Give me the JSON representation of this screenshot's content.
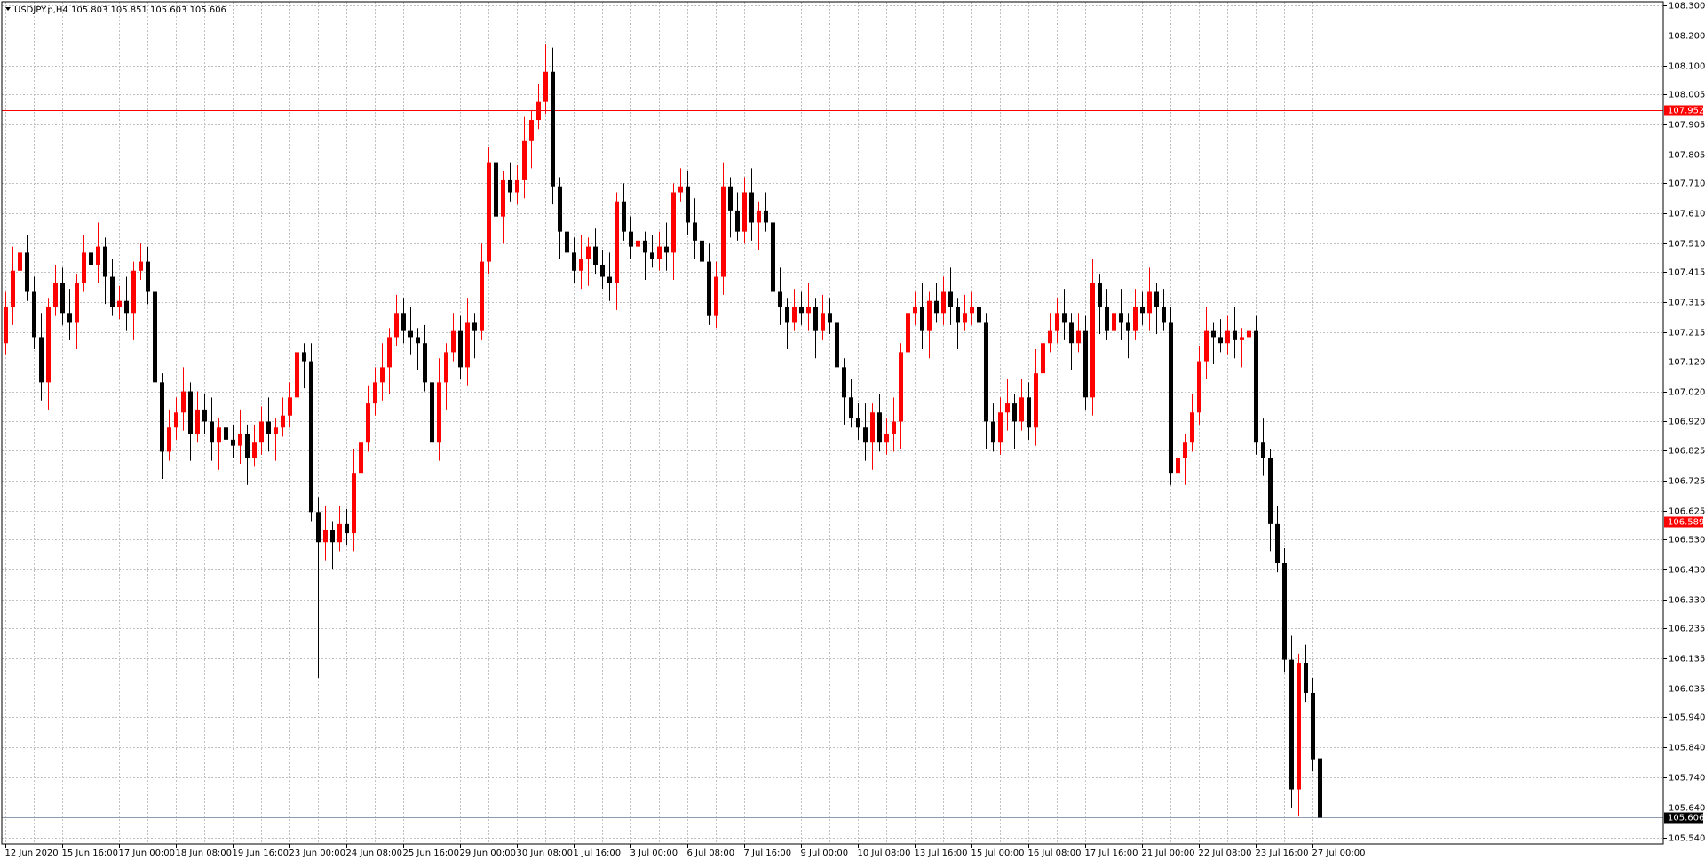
{
  "chart_data": {
    "type": "candlestick",
    "title": "USDJPY.p,H4  105.803 105.851 105.603 105.606",
    "categories": [
      "12 Jun 2020",
      null,
      null,
      null,
      null,
      null,
      null,
      null,
      "15 Jun 16:00",
      null,
      null,
      null,
      null,
      null,
      null,
      null,
      "17 Jun 00:00",
      null,
      null,
      null,
      null,
      null,
      null,
      null,
      "18 Jun 08:00",
      null,
      null,
      null,
      null,
      null,
      null,
      null,
      "19 Jun 16:00",
      null,
      null,
      null,
      null,
      null,
      null,
      null,
      "23 Jun 00:00",
      null,
      null,
      null,
      null,
      null,
      null,
      null,
      "24 Jun 08:00",
      null,
      null,
      null,
      null,
      null,
      null,
      null,
      "25 Jun 16:00",
      null,
      null,
      null,
      null,
      null,
      null,
      null,
      "29 Jun 00:00",
      null,
      null,
      null,
      null,
      null,
      null,
      null,
      "30 Jun 08:00",
      null,
      null,
      null,
      null,
      null,
      null,
      null,
      "1 Jul 16:00",
      null,
      null,
      null,
      null,
      null,
      null,
      null,
      "3 Jul 00:00",
      null,
      null,
      null,
      null,
      null,
      null,
      null,
      "6 Jul 08:00",
      null,
      null,
      null,
      null,
      null,
      null,
      null,
      "7 Jul 16:00",
      null,
      null,
      null,
      null,
      null,
      null,
      null,
      "9 Jul 00:00",
      null,
      null,
      null,
      null,
      null,
      null,
      null,
      "10 Jul 08:00",
      null,
      null,
      null,
      null,
      null,
      null,
      null,
      "13 Jul 16:00",
      null,
      null,
      null,
      null,
      null,
      null,
      null,
      "15 Jul 00:00",
      null,
      null,
      null,
      null,
      null,
      null,
      null,
      "16 Jul 08:00",
      null,
      null,
      null,
      null,
      null,
      null,
      null,
      "17 Jul 16:00",
      null,
      null,
      null,
      null,
      null,
      null,
      null,
      "21 Jul 00:00",
      null,
      null,
      null,
      null,
      null,
      null,
      null,
      "22 Jul 08:00",
      null,
      null,
      null,
      null,
      null,
      null,
      null,
      "23 Jul 16:00",
      null,
      null,
      null,
      null,
      null,
      null,
      null,
      "27 Jul 00:00",
      null
    ],
    "open": [
      107.18,
      107.3,
      107.42,
      107.48,
      107.35,
      107.2,
      107.05,
      107.3,
      107.38,
      107.28,
      107.25,
      107.38,
      107.48,
      107.44,
      107.5,
      107.4,
      107.3,
      107.32,
      107.28,
      107.42,
      107.45,
      107.35,
      107.05,
      106.82,
      106.9,
      106.95,
      107.02,
      106.88,
      106.96,
      106.92,
      106.85,
      106.9,
      106.86,
      106.84,
      106.88,
      106.8,
      106.85,
      106.92,
      106.88,
      106.9,
      106.94,
      107.0,
      107.15,
      107.12,
      106.62,
      106.52,
      106.56,
      106.52,
      106.58,
      106.55,
      106.75,
      106.85,
      106.98,
      107.05,
      107.1,
      107.2,
      107.28,
      107.22,
      107.2,
      107.18,
      107.05,
      106.85,
      107.05,
      107.15,
      107.22,
      107.1,
      107.25,
      107.22,
      107.45,
      107.78,
      107.6,
      107.72,
      107.68,
      107.72,
      107.85,
      107.92,
      107.98,
      108.08,
      107.7,
      107.55,
      107.48,
      107.42,
      107.46,
      107.5,
      107.44,
      107.4,
      107.38,
      107.65,
      107.55,
      107.5,
      107.52,
      107.48,
      107.46,
      107.5,
      107.48,
      107.68,
      107.7,
      107.58,
      107.52,
      107.45,
      107.27,
      107.4,
      107.7,
      107.62,
      107.55,
      107.68,
      107.58,
      107.62,
      107.58,
      107.35,
      107.3,
      107.25,
      107.3,
      107.28,
      107.3,
      107.22,
      107.28,
      107.25,
      107.1,
      107.0,
      106.93,
      106.9,
      106.85,
      106.95,
      106.85,
      106.88,
      106.92,
      107.15,
      107.28,
      107.3,
      107.22,
      107.32,
      107.28,
      107.35,
      107.3,
      107.25,
      107.28,
      107.3,
      107.25,
      106.92,
      106.85,
      106.95,
      106.98,
      106.92,
      107.0,
      106.9,
      107.08,
      107.18,
      107.22,
      107.28,
      107.25,
      107.18,
      107.22,
      107.0,
      107.38,
      107.3,
      107.22,
      107.28,
      107.25,
      107.22,
      107.3,
      107.28,
      107.35,
      107.3,
      107.25,
      106.75,
      106.8,
      106.85,
      106.95,
      107.12,
      107.22,
      107.2,
      107.18,
      107.22,
      107.19,
      107.2,
      107.22,
      106.85,
      106.8,
      106.58,
      106.45,
      106.13,
      105.7,
      106.12,
      106.02,
      105.803
    ],
    "high": [
      107.35,
      107.5,
      107.51,
      107.54,
      107.4,
      107.28,
      107.33,
      107.44,
      107.43,
      107.36,
      107.41,
      107.54,
      107.53,
      107.58,
      107.53,
      107.46,
      107.37,
      107.4,
      107.45,
      107.51,
      107.5,
      107.43,
      107.08,
      106.96,
      107.0,
      107.1,
      107.05,
      107.02,
      107.01,
      107.0,
      106.93,
      106.96,
      106.91,
      106.96,
      106.91,
      106.91,
      106.97,
      107.0,
      106.93,
      107.0,
      107.05,
      107.23,
      107.18,
      107.18,
      106.67,
      106.64,
      106.59,
      106.64,
      106.63,
      106.83,
      106.88,
      107.04,
      107.1,
      107.18,
      107.23,
      107.34,
      107.33,
      107.3,
      107.23,
      107.24,
      107.1,
      107.13,
      107.18,
      107.28,
      107.27,
      107.33,
      107.28,
      107.51,
      107.83,
      107.86,
      107.75,
      107.78,
      107.77,
      107.93,
      107.95,
      108.04,
      108.17,
      108.16,
      107.73,
      107.61,
      107.53,
      107.54,
      107.53,
      107.56,
      107.49,
      107.48,
      107.68,
      107.71,
      107.6,
      107.6,
      107.55,
      107.54,
      107.55,
      107.58,
      107.71,
      107.76,
      107.75,
      107.66,
      107.55,
      107.51,
      107.45,
      107.78,
      107.73,
      107.68,
      107.73,
      107.76,
      107.65,
      107.68,
      107.63,
      107.43,
      107.33,
      107.36,
      107.35,
      107.38,
      107.33,
      107.34,
      107.33,
      107.33,
      107.13,
      107.06,
      106.98,
      106.98,
      106.98,
      107.01,
      106.93,
      107.0,
      107.18,
      107.34,
      107.35,
      107.38,
      107.35,
      107.38,
      107.4,
      107.43,
      107.33,
      107.34,
      107.35,
      107.38,
      107.28,
      106.98,
      107.0,
      107.06,
      107.01,
      107.06,
      107.05,
      107.16,
      107.21,
      107.28,
      107.33,
      107.36,
      107.28,
      107.28,
      107.27,
      107.46,
      107.41,
      107.36,
      107.33,
      107.36,
      107.28,
      107.36,
      107.35,
      107.43,
      107.38,
      107.36,
      107.3,
      106.88,
      106.88,
      107.01,
      107.17,
      107.3,
      107.25,
      107.26,
      107.27,
      107.3,
      107.23,
      107.28,
      107.27,
      106.93,
      106.83,
      106.64,
      106.5,
      106.21,
      106.15,
      106.18,
      106.07,
      105.851
    ],
    "low": [
      107.14,
      107.24,
      107.33,
      107.32,
      107.16,
      106.99,
      106.96,
      107.27,
      107.24,
      107.19,
      107.16,
      107.35,
      107.4,
      107.38,
      107.31,
      107.27,
      107.26,
      107.22,
      107.19,
      107.39,
      107.31,
      106.99,
      106.73,
      106.79,
      106.86,
      106.89,
      106.79,
      106.85,
      106.88,
      106.79,
      106.76,
      106.83,
      106.8,
      106.78,
      106.71,
      106.77,
      106.81,
      106.82,
      106.79,
      106.87,
      106.9,
      106.94,
      107.03,
      106.59,
      106.07,
      106.46,
      106.43,
      106.49,
      106.51,
      106.49,
      106.66,
      106.82,
      106.94,
      106.99,
      107.01,
      107.17,
      107.18,
      107.14,
      107.09,
      107.02,
      106.81,
      106.79,
      106.96,
      107.12,
      107.06,
      107.04,
      107.13,
      107.19,
      107.41,
      107.54,
      107.51,
      107.65,
      107.64,
      107.66,
      107.76,
      107.89,
      107.94,
      107.64,
      107.46,
      107.45,
      107.38,
      107.36,
      107.37,
      107.41,
      107.36,
      107.32,
      107.29,
      107.52,
      107.46,
      107.44,
      107.39,
      107.43,
      107.42,
      107.42,
      107.39,
      107.65,
      107.54,
      107.46,
      107.36,
      107.24,
      107.23,
      107.34,
      107.53,
      107.52,
      107.51,
      107.52,
      107.49,
      107.55,
      107.31,
      107.24,
      107.16,
      107.22,
      107.24,
      107.22,
      107.13,
      107.19,
      107.21,
      107.04,
      106.91,
      106.9,
      106.86,
      106.79,
      106.76,
      106.82,
      106.81,
      106.82,
      106.83,
      107.12,
      107.24,
      107.16,
      107.13,
      107.25,
      107.24,
      107.24,
      107.16,
      107.22,
      107.24,
      107.19,
      106.83,
      106.82,
      106.81,
      106.89,
      106.83,
      106.89,
      106.86,
      106.84,
      106.99,
      107.15,
      107.18,
      107.19,
      107.09,
      107.15,
      106.96,
      106.94,
      107.21,
      107.19,
      107.18,
      107.19,
      107.13,
      107.19,
      107.24,
      107.22,
      107.21,
      107.22,
      106.71,
      106.69,
      106.71,
      106.82,
      106.91,
      107.06,
      107.11,
      107.15,
      107.14,
      107.13,
      107.1,
      107.17,
      106.81,
      106.74,
      106.49,
      106.42,
      106.09,
      105.64,
      105.61,
      105.99,
      105.76,
      105.603
    ],
    "close": [
      107.3,
      107.42,
      107.48,
      107.35,
      107.2,
      107.05,
      107.3,
      107.38,
      107.28,
      107.25,
      107.38,
      107.48,
      107.44,
      107.5,
      107.4,
      107.3,
      107.32,
      107.28,
      107.42,
      107.45,
      107.35,
      107.05,
      106.82,
      106.9,
      106.95,
      107.02,
      106.88,
      106.96,
      106.92,
      106.85,
      106.9,
      106.86,
      106.84,
      106.88,
      106.8,
      106.85,
      106.92,
      106.88,
      106.9,
      106.94,
      107.0,
      107.15,
      107.12,
      106.62,
      106.52,
      106.56,
      106.52,
      106.58,
      106.55,
      106.75,
      106.85,
      106.98,
      107.05,
      107.1,
      107.2,
      107.28,
      107.22,
      107.2,
      107.18,
      107.05,
      106.85,
      107.05,
      107.15,
      107.22,
      107.1,
      107.25,
      107.22,
      107.45,
      107.78,
      107.6,
      107.72,
      107.68,
      107.72,
      107.85,
      107.92,
      107.98,
      108.08,
      107.7,
      107.55,
      107.48,
      107.42,
      107.46,
      107.5,
      107.44,
      107.4,
      107.38,
      107.65,
      107.55,
      107.5,
      107.52,
      107.48,
      107.46,
      107.5,
      107.48,
      107.68,
      107.7,
      107.58,
      107.52,
      107.45,
      107.27,
      107.4,
      107.7,
      107.62,
      107.55,
      107.68,
      107.58,
      107.62,
      107.58,
      107.35,
      107.3,
      107.25,
      107.3,
      107.28,
      107.3,
      107.22,
      107.28,
      107.25,
      107.1,
      107.0,
      106.93,
      106.9,
      106.85,
      106.95,
      106.85,
      106.88,
      106.92,
      107.15,
      107.28,
      107.3,
      107.22,
      107.32,
      107.28,
      107.35,
      107.3,
      107.25,
      107.28,
      107.3,
      107.25,
      106.92,
      106.85,
      106.95,
      106.98,
      106.92,
      107.0,
      106.9,
      107.08,
      107.18,
      107.22,
      107.28,
      107.25,
      107.18,
      107.22,
      107.0,
      107.38,
      107.3,
      107.22,
      107.28,
      107.25,
      107.22,
      107.3,
      107.28,
      107.35,
      107.3,
      107.25,
      106.75,
      106.8,
      106.85,
      106.95,
      107.12,
      107.22,
      107.2,
      107.18,
      107.22,
      107.19,
      107.2,
      107.22,
      106.85,
      106.8,
      106.58,
      106.45,
      106.13,
      105.7,
      106.12,
      106.02,
      105.8,
      105.606
    ],
    "up_color": "#ff0000",
    "down_color": "#000000",
    "ylim": [
      105.519,
      108.312
    ],
    "yticks": [
      {
        "value": 108.3,
        "label": "108.300"
      },
      {
        "value": 108.2,
        "label": "108.200"
      },
      {
        "value": 108.1,
        "label": "108.100"
      },
      108.005,
      107.905,
      107.805,
      {
        "value": 107.71,
        "label": "107.710"
      },
      {
        "value": 107.61,
        "label": "107.610"
      },
      {
        "value": 107.51,
        "label": "107.510"
      },
      107.415,
      107.315,
      107.215,
      {
        "value": 107.12,
        "label": "107.120"
      },
      {
        "value": 107.02,
        "label": "107.020"
      },
      {
        "value": 106.92,
        "label": "106.920"
      },
      106.825,
      106.725,
      106.625,
      {
        "value": 106.53,
        "label": "106.530"
      },
      {
        "value": 106.43,
        "label": "106.430"
      },
      {
        "value": 106.33,
        "label": "106.330"
      },
      106.235,
      106.135,
      106.035,
      {
        "value": 105.94,
        "label": "105.940"
      },
      {
        "value": 105.84,
        "label": "105.840"
      },
      {
        "value": 105.74,
        "label": "105.740"
      },
      {
        "value": 105.64,
        "label": "105.640"
      },
      {
        "value": 105.54,
        "label": "105.540"
      }
    ],
    "grid": true,
    "grid_color": "#c0c0c0",
    "levels": [
      107.952,
      106.589
    ],
    "level_color": "#ff0000",
    "bid_line": 105.606,
    "bid_color": "#8c9bb0"
  }
}
